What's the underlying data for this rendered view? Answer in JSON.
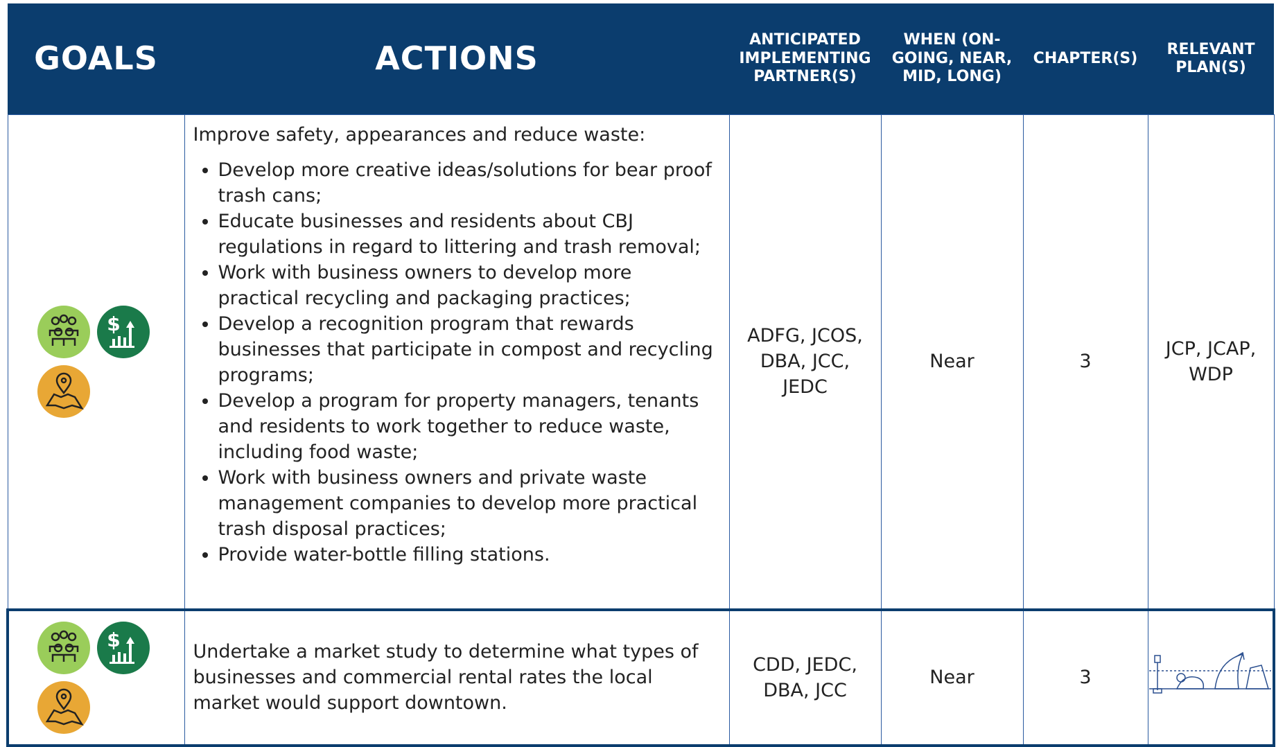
{
  "header": {
    "goals": "GOALS",
    "actions": "ACTIONS",
    "partners": "ANTICIPATED IMPLEMENTING PARTNER(S)",
    "when": "WHEN (ON-GOING, NEAR, MID, LONG)",
    "chapters": "CHAPTER(S)",
    "plans": "RELEVANT PLAN(S)"
  },
  "rows": [
    {
      "intro": "Improve safety, appearances and reduce waste:",
      "bullets": [
        "Develop more creative ideas/solutions for bear proof trash cans;",
        "Educate businesses and residents about CBJ regulations in regard to littering and trash removal;",
        "Work with business owners to develop more practical recycling and packaging practices;",
        "Develop a recognition program that rewards businesses that participate in compost and recycling programs;",
        "Develop a program for property managers, tenants and residents to work together to reduce waste, including food waste;",
        "Work with business owners and private waste management companies to develop more practical trash disposal practices;",
        "Provide water-bottle filling stations."
      ],
      "partners": "ADFG, JCOS, DBA, JCC, JEDC",
      "when": "Near",
      "chapters": "3",
      "plans": "JCP, JCAP, WDP"
    },
    {
      "intro": "Undertake a market study to determine what types of businesses and commercial rental rates the local market would support downtown.",
      "partners": "CDD, JEDC, DBA, JCC",
      "when": "Near",
      "chapters": "3"
    }
  ]
}
